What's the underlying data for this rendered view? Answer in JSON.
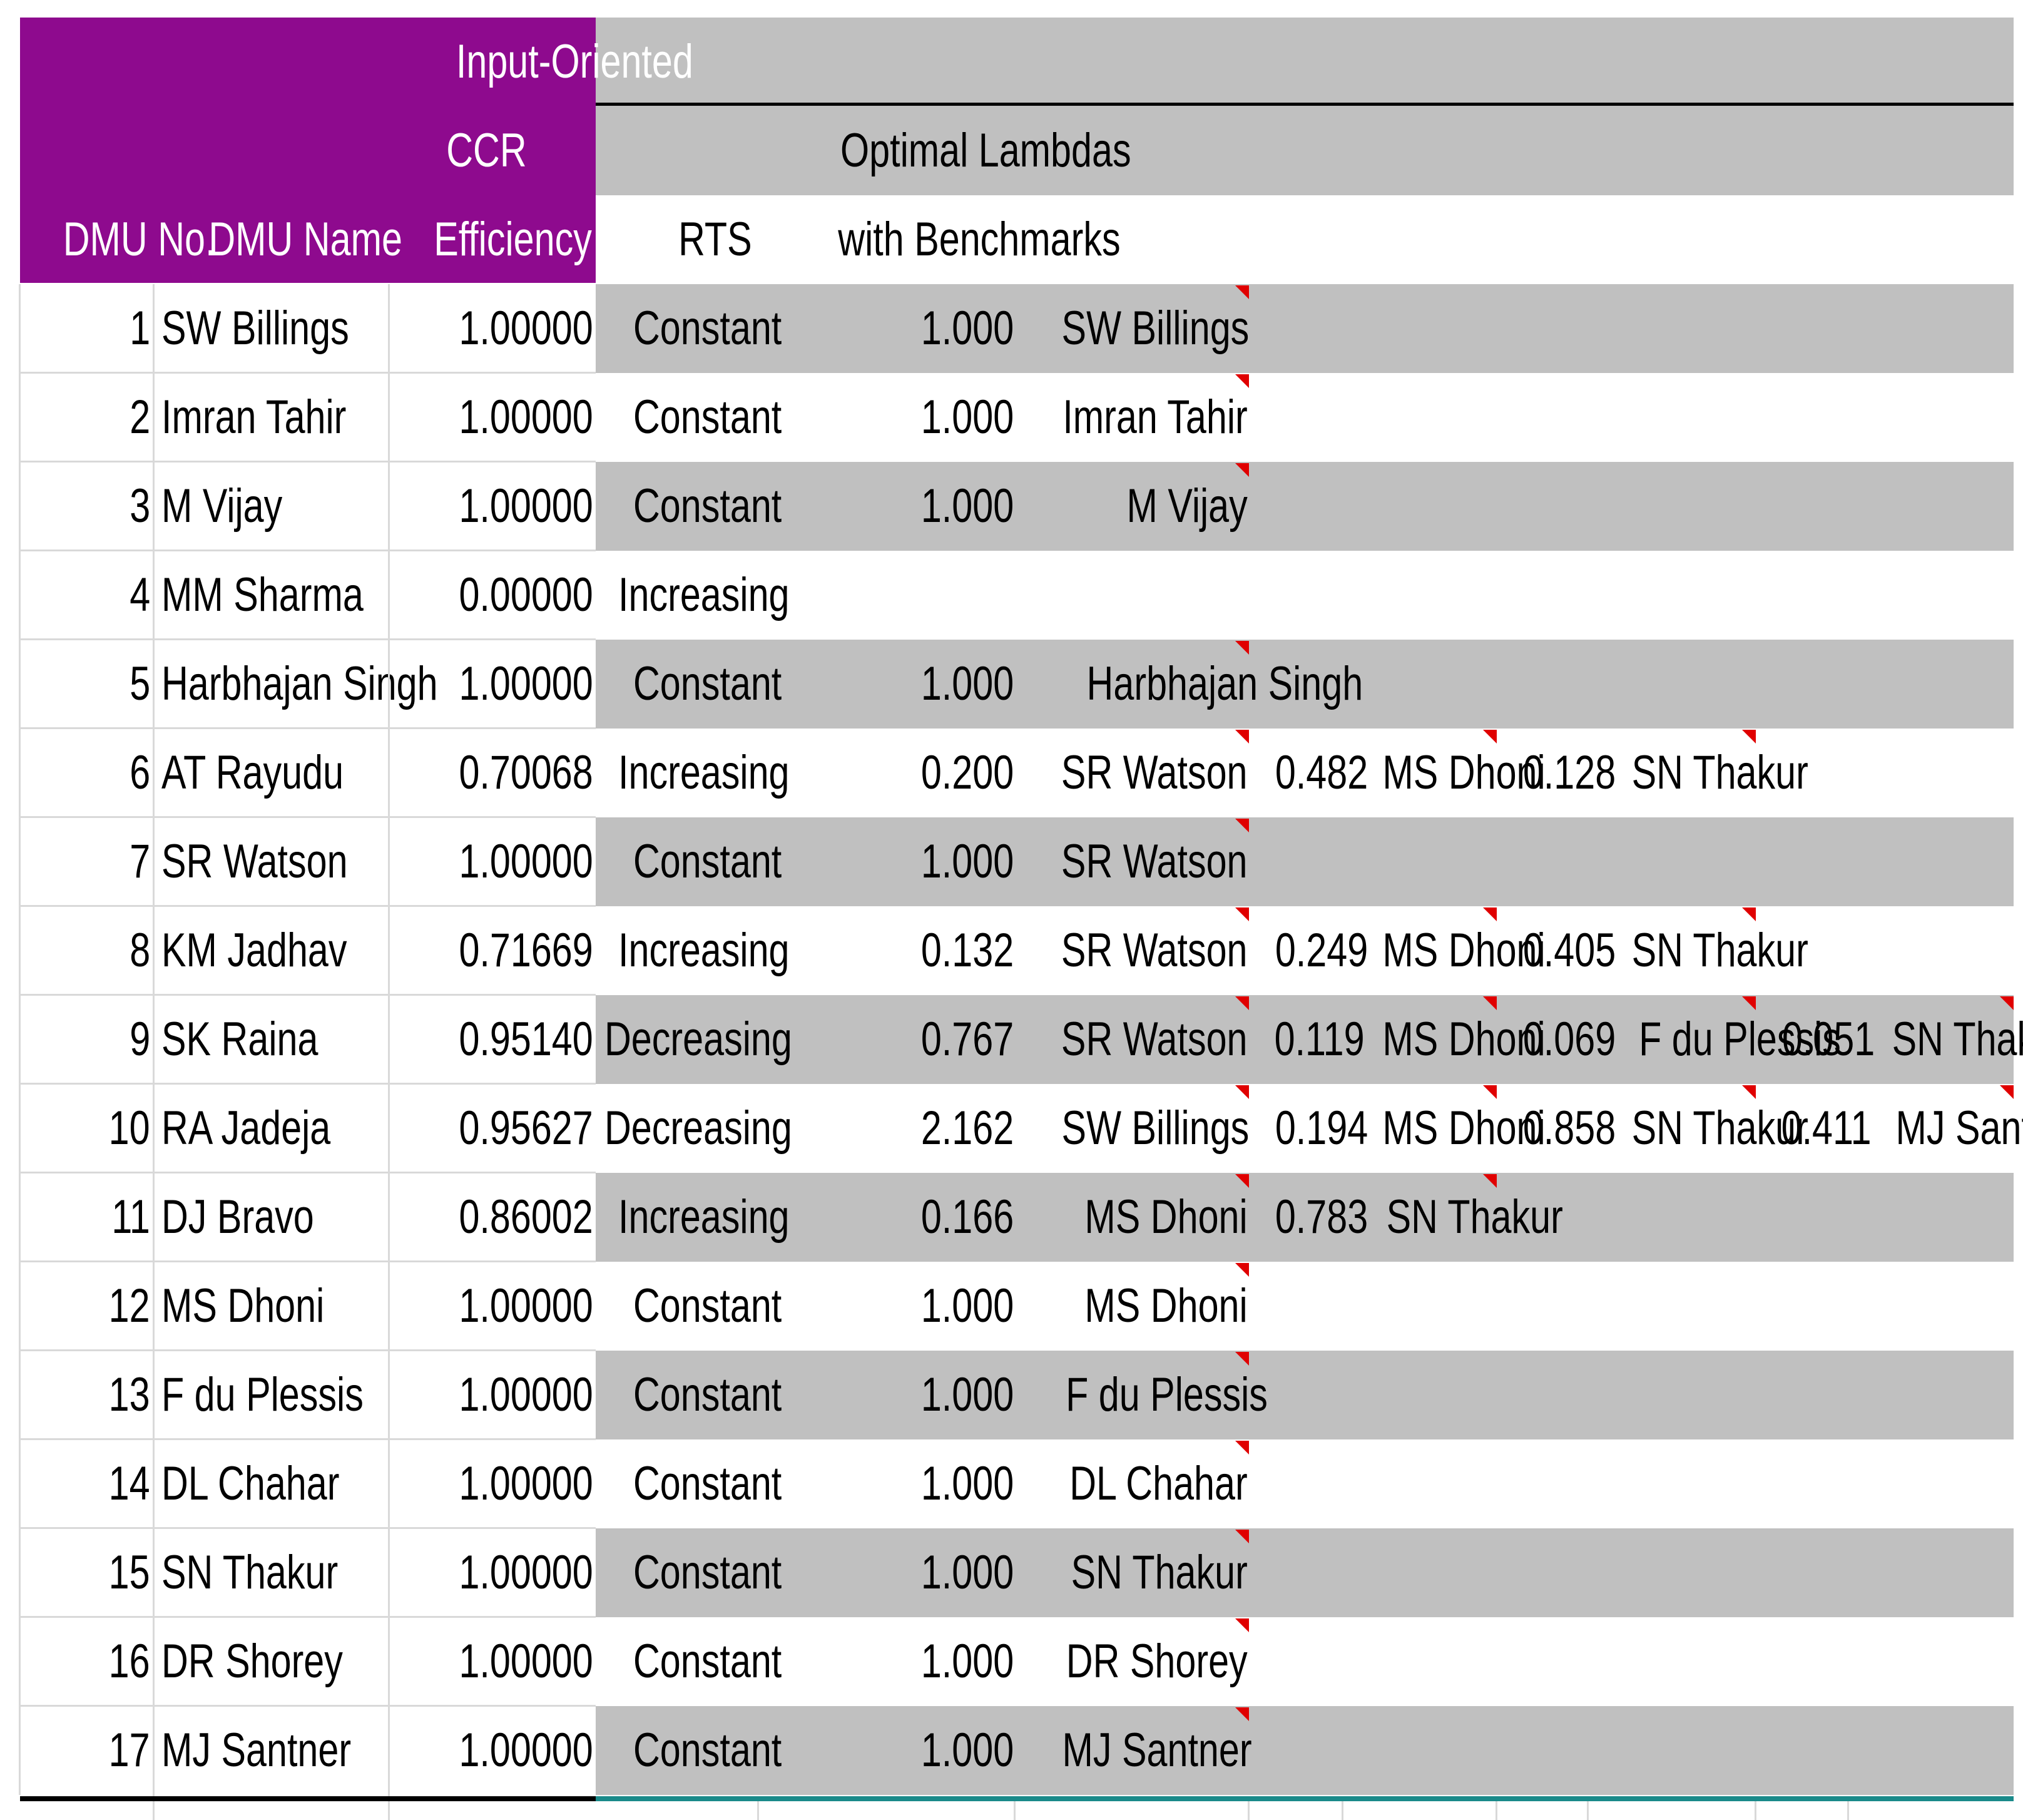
{
  "colors": {
    "header_bg": "#8e0a8e",
    "row_gray": "#c0c0c0",
    "comment_marker": "#e00000",
    "bottom_border_teal": "#1a8a8a"
  },
  "header": {
    "line1": {
      "efficiency": "Input-Oriented"
    },
    "line2": {
      "efficiency": "CCR",
      "lambdas": "Optimal Lambdas"
    },
    "line3": {
      "dmu_no": "DMU No.",
      "dmu_name": "DMU Name",
      "efficiency": "Efficiency",
      "rts": "RTS",
      "lambdas": "with Benchmarks"
    }
  },
  "rows": [
    {
      "no": "1",
      "name": "SW Billings",
      "eff": "1.00000",
      "rts": "Constant",
      "bench": [
        {
          "lambda": "1.000",
          "dmu": "SW Billings"
        }
      ]
    },
    {
      "no": "2",
      "name": "Imran Tahir",
      "eff": "1.00000",
      "rts": "Constant",
      "bench": [
        {
          "lambda": "1.000",
          "dmu": "Imran Tahir"
        }
      ]
    },
    {
      "no": "3",
      "name": "M Vijay",
      "eff": "1.00000",
      "rts": "Constant",
      "bench": [
        {
          "lambda": "1.000",
          "dmu": "M Vijay"
        }
      ]
    },
    {
      "no": "4",
      "name": "MM Sharma",
      "eff": "0.00000",
      "rts": "Increasing",
      "bench": []
    },
    {
      "no": "5",
      "name": "Harbhajan Singh",
      "eff": "1.00000",
      "rts": "Constant",
      "bench": [
        {
          "lambda": "1.000",
          "dmu": "Harbhajan Singh"
        }
      ]
    },
    {
      "no": "6",
      "name": "AT Rayudu",
      "eff": "0.70068",
      "rts": "Increasing",
      "bench": [
        {
          "lambda": "0.200",
          "dmu": "SR Watson"
        },
        {
          "lambda": "0.482",
          "dmu": "MS Dhoni"
        },
        {
          "lambda": "0.128",
          "dmu": "SN Thakur"
        }
      ]
    },
    {
      "no": "7",
      "name": "SR Watson",
      "eff": "1.00000",
      "rts": "Constant",
      "bench": [
        {
          "lambda": "1.000",
          "dmu": "SR Watson"
        }
      ]
    },
    {
      "no": "8",
      "name": "KM Jadhav",
      "eff": "0.71669",
      "rts": "Increasing",
      "bench": [
        {
          "lambda": "0.132",
          "dmu": "SR Watson"
        },
        {
          "lambda": "0.249",
          "dmu": "MS Dhoni"
        },
        {
          "lambda": "0.405",
          "dmu": "SN Thakur"
        }
      ]
    },
    {
      "no": "9",
      "name": "SK Raina",
      "eff": "0.95140",
      "rts": "Decreasing",
      "bench": [
        {
          "lambda": "0.767",
          "dmu": "SR Watson"
        },
        {
          "lambda": "0.119",
          "dmu": "MS Dhoni"
        },
        {
          "lambda": "0.069",
          "dmu": "F du Plessis"
        },
        {
          "lambda": "0.051",
          "dmu": "SN Thakur"
        }
      ]
    },
    {
      "no": "10",
      "name": "RA Jadeja",
      "eff": "0.95627",
      "rts": "Decreasing",
      "bench": [
        {
          "lambda": "2.162",
          "dmu": "SW Billings"
        },
        {
          "lambda": "0.194",
          "dmu": "MS Dhoni"
        },
        {
          "lambda": "0.858",
          "dmu": "SN Thakur"
        },
        {
          "lambda": "0.411",
          "dmu": "MJ Santner"
        }
      ]
    },
    {
      "no": "11",
      "name": "DJ Bravo",
      "eff": "0.86002",
      "rts": "Increasing",
      "bench": [
        {
          "lambda": "0.166",
          "dmu": "MS Dhoni"
        },
        {
          "lambda": "0.783",
          "dmu": "SN Thakur"
        }
      ]
    },
    {
      "no": "12",
      "name": "MS Dhoni",
      "eff": "1.00000",
      "rts": "Constant",
      "bench": [
        {
          "lambda": "1.000",
          "dmu": "MS Dhoni"
        }
      ]
    },
    {
      "no": "13",
      "name": "F du Plessis",
      "eff": "1.00000",
      "rts": "Constant",
      "bench": [
        {
          "lambda": "1.000",
          "dmu": "F du Plessis"
        }
      ]
    },
    {
      "no": "14",
      "name": "DL Chahar",
      "eff": "1.00000",
      "rts": "Constant",
      "bench": [
        {
          "lambda": "1.000",
          "dmu": "DL Chahar"
        }
      ]
    },
    {
      "no": "15",
      "name": "SN Thakur",
      "eff": "1.00000",
      "rts": "Constant",
      "bench": [
        {
          "lambda": "1.000",
          "dmu": "SN Thakur"
        }
      ]
    },
    {
      "no": "16",
      "name": "DR Shorey",
      "eff": "1.00000",
      "rts": "Constant",
      "bench": [
        {
          "lambda": "1.000",
          "dmu": "DR Shorey"
        }
      ]
    },
    {
      "no": "17",
      "name": "MJ Santner",
      "eff": "1.00000",
      "rts": "Constant",
      "bench": [
        {
          "lambda": "1.000",
          "dmu": "MJ Santner"
        }
      ]
    }
  ]
}
